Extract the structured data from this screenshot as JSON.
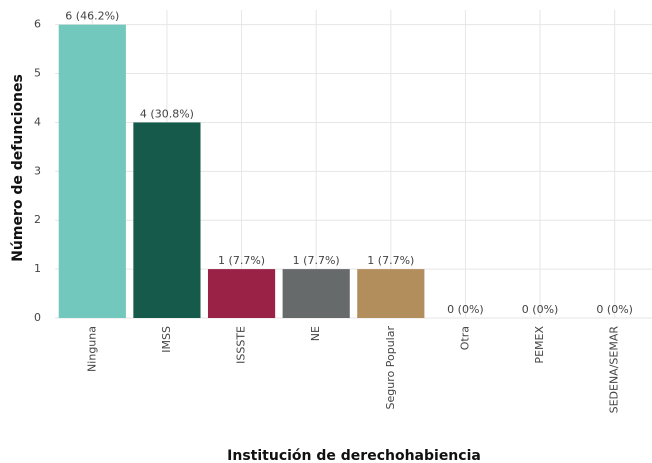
{
  "chart_data": {
    "type": "bar",
    "xlabel": "Institución de derechohabiencia",
    "ylabel": "Número de defunciones",
    "categories": [
      "Ninguna",
      "IMSS",
      "ISSSTE",
      "NE",
      "Seguro Popular",
      "Otra",
      "PEMEX",
      "SEDENA/SEMAR"
    ],
    "values": [
      6,
      4,
      1,
      1,
      1,
      0,
      0,
      0
    ],
    "value_labels": [
      "6 (46.2%)",
      "4 (30.8%)",
      "1 (7.7%)",
      "1 (7.7%)",
      "1 (7.7%)",
      "0 (0%)",
      "0 (0%)",
      "0 (0%)"
    ],
    "colors": [
      "#72c8bc",
      "#165a4c",
      "#9b2247",
      "#666a6a",
      "#b38e5d",
      "#999999",
      "#999999",
      "#999999"
    ],
    "ylim": [
      0,
      6.3
    ],
    "yticks": [
      0,
      1,
      2,
      3,
      4,
      5,
      6
    ],
    "grid": true
  }
}
